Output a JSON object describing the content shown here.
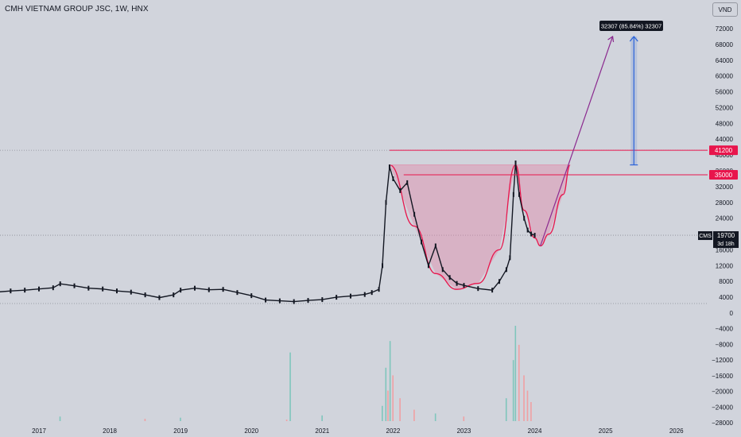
{
  "header": {
    "title": "CMH VIETNAM GROUP JSC, 1W, HNX",
    "currency": "VND"
  },
  "colors": {
    "background": "#d1d4dc",
    "candle": "#131722",
    "up_volume": "#7fc6bc",
    "down_volume": "#f0a0a3",
    "cup_fill": "#e08aa8",
    "cup_line": "#e8154c",
    "level_line": "#e8154c",
    "target_arrow": "#8b2a8f",
    "measure_box": "#2b63d9",
    "price_label_bg": "#e8154c",
    "last_price_bg": "#131722"
  },
  "chart_data": {
    "type": "candlestick",
    "symbol": "CMS",
    "interval": "1W",
    "exchange": "HNX",
    "x_ticks": [
      "2017",
      "2018",
      "2019",
      "2020",
      "2021",
      "2022",
      "2023",
      "2024",
      "2025",
      "2026"
    ],
    "y_ticks": [
      72000,
      68000,
      64000,
      60000,
      56000,
      52000,
      48000,
      44000,
      40000,
      36000,
      32000,
      28000,
      24000,
      20000,
      16000,
      12000,
      8000,
      4000,
      0,
      -4000,
      -8000,
      -12000,
      -16000,
      -20000,
      -24000,
      -28000
    ],
    "ylim": [
      -28000,
      74000
    ],
    "grid": false,
    "price_series": [
      {
        "t": 2016.4,
        "v": 5300
      },
      {
        "t": 2016.6,
        "v": 5600
      },
      {
        "t": 2016.8,
        "v": 5800
      },
      {
        "t": 2017.0,
        "v": 6100
      },
      {
        "t": 2017.2,
        "v": 6400
      },
      {
        "t": 2017.3,
        "v": 7400
      },
      {
        "t": 2017.5,
        "v": 6900
      },
      {
        "t": 2017.7,
        "v": 6300
      },
      {
        "t": 2017.9,
        "v": 6100
      },
      {
        "t": 2018.1,
        "v": 5600
      },
      {
        "t": 2018.3,
        "v": 5300
      },
      {
        "t": 2018.5,
        "v": 4600
      },
      {
        "t": 2018.7,
        "v": 3900
      },
      {
        "t": 2018.9,
        "v": 4600
      },
      {
        "t": 2019.0,
        "v": 5800
      },
      {
        "t": 2019.2,
        "v": 6300
      },
      {
        "t": 2019.4,
        "v": 5900
      },
      {
        "t": 2019.6,
        "v": 6000
      },
      {
        "t": 2019.8,
        "v": 5200
      },
      {
        "t": 2020.0,
        "v": 4400
      },
      {
        "t": 2020.2,
        "v": 3300
      },
      {
        "t": 2020.4,
        "v": 3100
      },
      {
        "t": 2020.6,
        "v": 2900
      },
      {
        "t": 2020.8,
        "v": 3200
      },
      {
        "t": 2021.0,
        "v": 3400
      },
      {
        "t": 2021.2,
        "v": 4000
      },
      {
        "t": 2021.4,
        "v": 4300
      },
      {
        "t": 2021.6,
        "v": 4700
      },
      {
        "t": 2021.7,
        "v": 5200
      },
      {
        "t": 2021.8,
        "v": 6000
      },
      {
        "t": 2021.85,
        "v": 12000
      },
      {
        "t": 2021.9,
        "v": 28000
      },
      {
        "t": 2021.95,
        "v": 37000
      },
      {
        "t": 2022.0,
        "v": 34000
      },
      {
        "t": 2022.1,
        "v": 31000
      },
      {
        "t": 2022.2,
        "v": 33000
      },
      {
        "t": 2022.3,
        "v": 25000
      },
      {
        "t": 2022.4,
        "v": 18000
      },
      {
        "t": 2022.5,
        "v": 12000
      },
      {
        "t": 2022.6,
        "v": 17000
      },
      {
        "t": 2022.7,
        "v": 11000
      },
      {
        "t": 2022.8,
        "v": 9000
      },
      {
        "t": 2022.9,
        "v": 7500
      },
      {
        "t": 2023.0,
        "v": 7000
      },
      {
        "t": 2023.2,
        "v": 6200
      },
      {
        "t": 2023.4,
        "v": 5800
      },
      {
        "t": 2023.5,
        "v": 8000
      },
      {
        "t": 2023.6,
        "v": 11000
      },
      {
        "t": 2023.65,
        "v": 14000
      },
      {
        "t": 2023.7,
        "v": 30000
      },
      {
        "t": 2023.73,
        "v": 38000
      },
      {
        "t": 2023.78,
        "v": 30000
      },
      {
        "t": 2023.85,
        "v": 24000
      },
      {
        "t": 2023.9,
        "v": 21000
      },
      {
        "t": 2023.95,
        "v": 20000
      },
      {
        "t": 2024.0,
        "v": 19700
      }
    ],
    "volume_series": [
      {
        "t": 2017.3,
        "v": 1200,
        "up": true
      },
      {
        "t": 2018.5,
        "v": 600,
        "up": false
      },
      {
        "t": 2019.0,
        "v": 900,
        "up": true
      },
      {
        "t": 2020.5,
        "v": 400,
        "up": false
      },
      {
        "t": 2020.55,
        "v": 18000,
        "up": true
      },
      {
        "t": 2021.0,
        "v": 1500,
        "up": true
      },
      {
        "t": 2021.85,
        "v": 4000,
        "up": true
      },
      {
        "t": 2021.9,
        "v": 14000,
        "up": true
      },
      {
        "t": 2021.93,
        "v": 8000,
        "up": false
      },
      {
        "t": 2021.96,
        "v": 21000,
        "up": true
      },
      {
        "t": 2022.0,
        "v": 12000,
        "up": false
      },
      {
        "t": 2022.1,
        "v": 6000,
        "up": false
      },
      {
        "t": 2022.3,
        "v": 3000,
        "up": false
      },
      {
        "t": 2022.6,
        "v": 2000,
        "up": true
      },
      {
        "t": 2023.0,
        "v": 1200,
        "up": false
      },
      {
        "t": 2023.6,
        "v": 6000,
        "up": true
      },
      {
        "t": 2023.7,
        "v": 16000,
        "up": true
      },
      {
        "t": 2023.73,
        "v": 25000,
        "up": true
      },
      {
        "t": 2023.78,
        "v": 20000,
        "up": false
      },
      {
        "t": 2023.85,
        "v": 12000,
        "up": false
      },
      {
        "t": 2023.9,
        "v": 8000,
        "up": false
      },
      {
        "t": 2023.95,
        "v": 5000,
        "up": false
      }
    ],
    "levels": [
      {
        "price": 41200,
        "label": "41200"
      },
      {
        "price": 35000,
        "label": "35000"
      }
    ],
    "last_price": {
      "symbol": "CMS",
      "price": "19700",
      "countdown": "3d 18h"
    },
    "projection": {
      "label": "32307 (85.84%) 32307"
    }
  }
}
